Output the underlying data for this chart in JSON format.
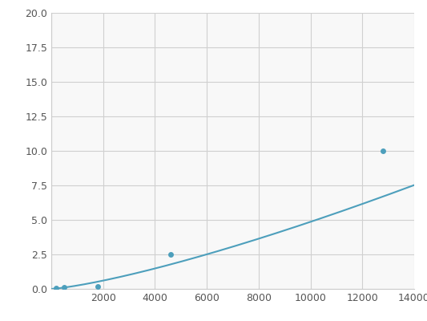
{
  "x": [
    200,
    500,
    1800,
    4600,
    12800
  ],
  "y": [
    0.05,
    0.1,
    0.15,
    2.5,
    10.0
  ],
  "line_color": "#4d9fbc",
  "marker_color": "#4d9fbc",
  "marker_size": 5,
  "line_width": 1.5,
  "xlim": [
    0,
    14000
  ],
  "ylim": [
    0,
    20
  ],
  "xticks": [
    0,
    2000,
    4000,
    6000,
    8000,
    10000,
    12000,
    14000
  ],
  "yticks": [
    0.0,
    2.5,
    5.0,
    7.5,
    10.0,
    12.5,
    15.0,
    17.5,
    20.0
  ],
  "grid_color": "#d0d0d0",
  "background_color": "#f8f8f8",
  "fig_background": "#ffffff"
}
